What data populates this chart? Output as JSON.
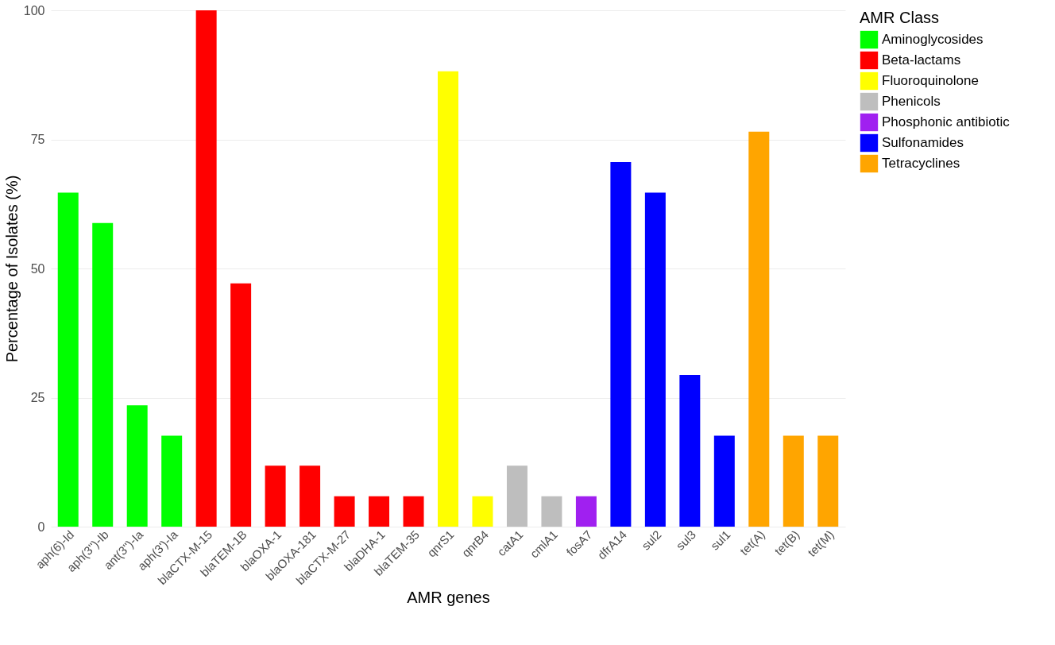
{
  "chart_data": {
    "type": "bar",
    "xlabel": "AMR genes",
    "ylabel": "Percentage of Isolates (%)",
    "legend_title": "AMR Class",
    "categories": [
      "aph(6)-Id",
      "aph(3'')-Ib",
      "ant(3'')-Ia",
      "aph(3')-Ia",
      "blaCTX-M-15",
      "blaTEM-1B",
      "blaOXA-1",
      "blaOXA-181",
      "blaCTX-M-27",
      "blaDHA-1",
      "blaTEM-35",
      "qnrS1",
      "qnrB4",
      "catA1",
      "cmlA1",
      "fosA7",
      "dfrA14",
      "sul2",
      "sul3",
      "sul1",
      "tet(A)",
      "tet(B)",
      "tet(M)"
    ],
    "series": [
      {
        "name": "Aminoglycosides",
        "color": "#00ff00",
        "values": [
          64.7,
          58.8,
          23.5,
          17.6,
          null,
          null,
          null,
          null,
          null,
          null,
          null,
          null,
          null,
          null,
          null,
          null,
          null,
          null,
          null,
          null,
          null,
          null,
          null
        ]
      },
      {
        "name": "Beta-lactams",
        "color": "#ff0000",
        "values": [
          null,
          null,
          null,
          null,
          100,
          47.1,
          11.8,
          11.8,
          5.9,
          5.9,
          5.9,
          null,
          null,
          null,
          null,
          null,
          null,
          null,
          null,
          null,
          null,
          null,
          null
        ]
      },
      {
        "name": "Fluoroquinolone",
        "color": "#ffff00",
        "values": [
          null,
          null,
          null,
          null,
          null,
          null,
          null,
          null,
          null,
          null,
          null,
          88.2,
          5.9,
          null,
          null,
          null,
          null,
          null,
          null,
          null,
          null,
          null,
          null
        ]
      },
      {
        "name": "Phenicols",
        "color": "#bebebe",
        "values": [
          null,
          null,
          null,
          null,
          null,
          null,
          null,
          null,
          null,
          null,
          null,
          null,
          null,
          11.8,
          5.9,
          null,
          null,
          null,
          null,
          null,
          null,
          null,
          null
        ]
      },
      {
        "name": "Phosphonic antibiotic",
        "color": "#a020f0",
        "values": [
          null,
          null,
          null,
          null,
          null,
          null,
          null,
          null,
          null,
          null,
          null,
          null,
          null,
          null,
          null,
          5.9,
          null,
          null,
          null,
          null,
          null,
          null,
          null
        ]
      },
      {
        "name": "Sulfonamides",
        "color": "#0000ff",
        "values": [
          null,
          null,
          null,
          null,
          null,
          null,
          null,
          null,
          null,
          null,
          null,
          null,
          null,
          null,
          null,
          null,
          70.6,
          64.7,
          29.4,
          17.6,
          null,
          null,
          null
        ]
      },
      {
        "name": "Tetracyclines",
        "color": "#ffa500",
        "values": [
          null,
          null,
          null,
          null,
          null,
          null,
          null,
          null,
          null,
          null,
          null,
          null,
          null,
          null,
          null,
          null,
          null,
          null,
          null,
          null,
          76.5,
          17.6,
          17.6
        ]
      }
    ],
    "ylim": [
      0,
      100
    ],
    "yticks": [
      0,
      25,
      50,
      75,
      100
    ],
    "grid": "y",
    "legend": "right"
  }
}
